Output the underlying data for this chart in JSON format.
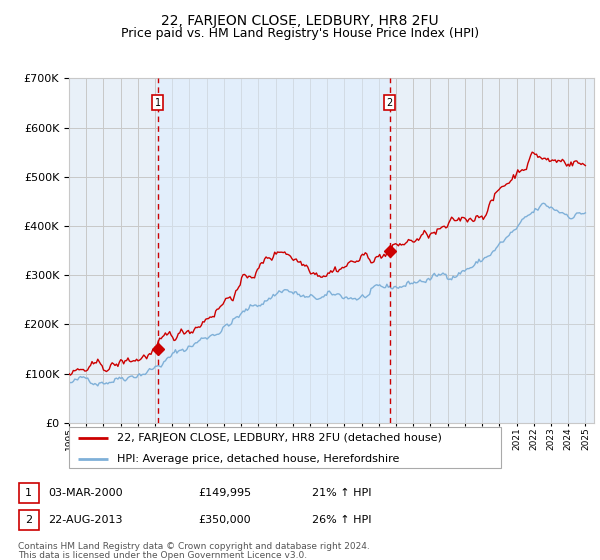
{
  "title": "22, FARJEON CLOSE, LEDBURY, HR8 2FU",
  "subtitle": "Price paid vs. HM Land Registry's House Price Index (HPI)",
  "ylim": [
    0,
    700000
  ],
  "yticks": [
    0,
    100000,
    200000,
    300000,
    400000,
    500000,
    600000,
    700000
  ],
  "xlim_start": 1995.0,
  "xlim_end": 2025.5,
  "sale1_date": 2000.17,
  "sale1_price": 149995,
  "sale1_label": "1",
  "sale2_date": 2013.64,
  "sale2_price": 350000,
  "sale2_label": "2",
  "legend_line1": "22, FARJEON CLOSE, LEDBURY, HR8 2FU (detached house)",
  "legend_line2": "HPI: Average price, detached house, Herefordshire",
  "footnote1": "Contains HM Land Registry data © Crown copyright and database right 2024.",
  "footnote2": "This data is licensed under the Open Government Licence v3.0.",
  "property_color": "#cc0000",
  "hpi_color": "#7fb0d8",
  "hpi_fill_color": "#ddeeff",
  "vline_color": "#cc0000",
  "marker_box_color": "#cc0000",
  "background_color": "#e8f0f8",
  "grid_color": "#c8c8c8",
  "title_fontsize": 10,
  "subtitle_fontsize": 9,
  "axis_fontsize": 8,
  "legend_fontsize": 8,
  "footnote_fontsize": 6.5,
  "info_fontsize": 8
}
